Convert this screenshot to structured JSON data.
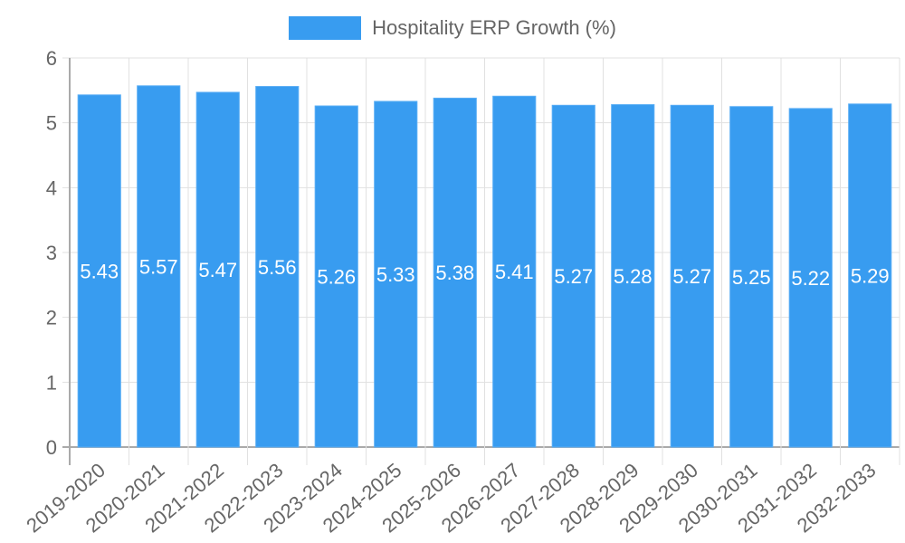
{
  "chart_data": {
    "type": "bar",
    "title": "",
    "xlabel": "",
    "ylabel": "",
    "legend": {
      "position": "top",
      "entries": [
        "Hospitality ERP Growth (%)"
      ]
    },
    "categories": [
      "2019-2020",
      "2020-2021",
      "2021-2022",
      "2022-2023",
      "2023-2024",
      "2024-2025",
      "2025-2026",
      "2026-2027",
      "2027-2028",
      "2028-2029",
      "2029-2030",
      "2030-2031",
      "2031-2032",
      "2032-2033"
    ],
    "series": [
      {
        "name": "Hospitality ERP Growth (%)",
        "color": "#389cf0",
        "values": [
          5.43,
          5.57,
          5.47,
          5.56,
          5.26,
          5.33,
          5.38,
          5.41,
          5.27,
          5.28,
          5.27,
          5.25,
          5.22,
          5.29
        ]
      }
    ],
    "data_labels": [
      "5.43",
      "5.57",
      "5.47",
      "5.56",
      "5.26",
      "5.33",
      "5.38",
      "5.41",
      "5.27",
      "5.28",
      "5.27",
      "5.25",
      "5.22",
      "5.29"
    ],
    "ylim": [
      0,
      6
    ],
    "yticks": [
      0,
      1,
      2,
      3,
      4,
      5,
      6
    ],
    "grid": true,
    "x_tick_rotation": -40
  },
  "colors": {
    "bar": "#389cf0",
    "bar_border": "#5aaef5",
    "grid": "#e1e1e1",
    "axis": "#aaaaaa",
    "tick_text": "#666666",
    "data_label": "#ffffff"
  }
}
